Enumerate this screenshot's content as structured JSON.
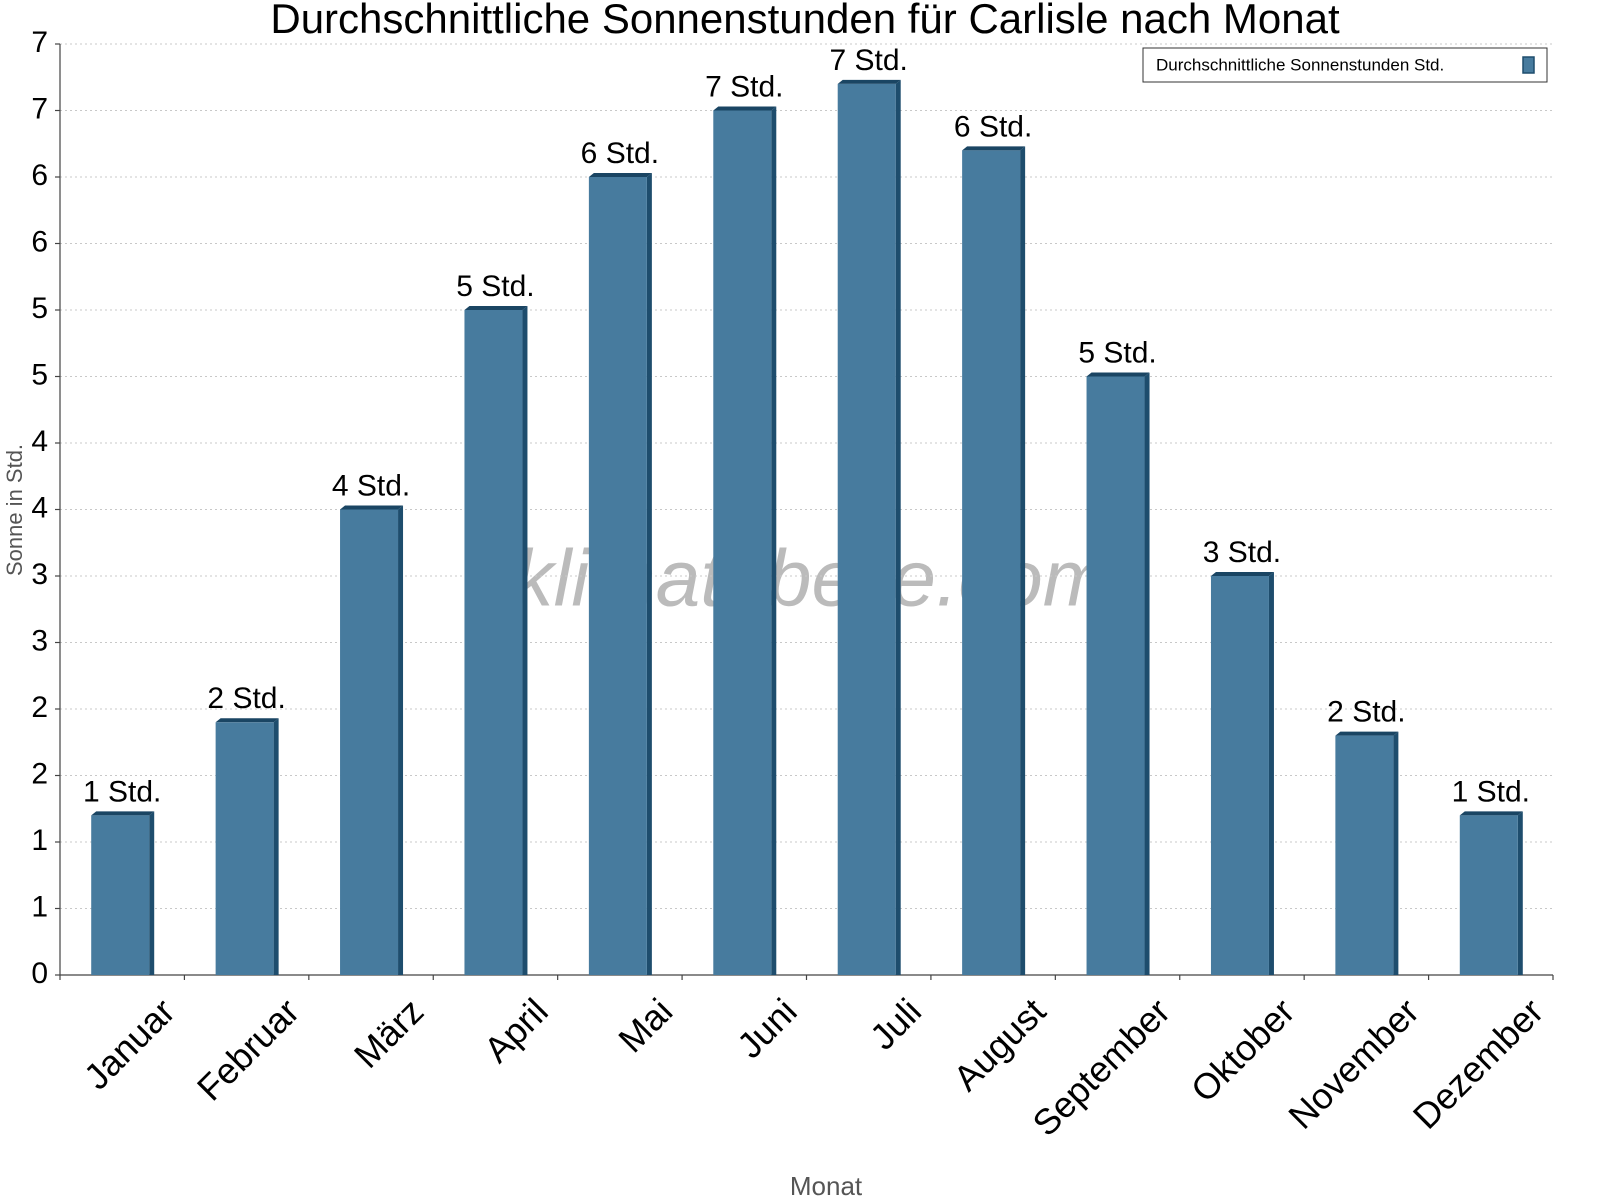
{
  "chart_data": {
    "type": "bar",
    "title": "Durchschnittliche Sonnenstunden für Carlisle nach Monat",
    "x_label": "Monat",
    "y_label": "Sonne in Std.",
    "watermark": "klimatabelle.com",
    "categories": [
      "Januar",
      "Februar",
      "März",
      "April",
      "Mai",
      "Juni",
      "Juli",
      "August",
      "September",
      "Oktober",
      "November",
      "Dezember"
    ],
    "series": [
      {
        "name": "Durchschnittliche Sonnenstunden Std.",
        "color": "#477b9e",
        "values": [
          1.2,
          1.9,
          3.5,
          5.0,
          6.0,
          6.5,
          6.7,
          6.2,
          4.5,
          3.0,
          1.8,
          1.2
        ],
        "value_labels": [
          "1 Std.",
          "2 Std.",
          "4 Std.",
          "5 Std.",
          "6 Std.",
          "7 Std.",
          "7 Std.",
          "6 Std.",
          "5 Std.",
          "3 Std.",
          "2 Std.",
          "1 Std."
        ]
      }
    ],
    "ylim": [
      0,
      7
    ],
    "yticks": [
      0,
      {
        "value": 0.5,
        "label": "1"
      },
      1,
      {
        "value": 1.5,
        "label": "2"
      },
      2,
      {
        "value": 2.5,
        "label": "3"
      },
      3,
      {
        "value": 3.5,
        "label": "4"
      },
      4,
      {
        "value": 4.5,
        "label": "5"
      },
      5,
      {
        "value": 5.5,
        "label": "6"
      },
      6,
      {
        "value": 6.5,
        "label": "7"
      },
      7
    ],
    "grid": true,
    "legend": "top-right"
  }
}
